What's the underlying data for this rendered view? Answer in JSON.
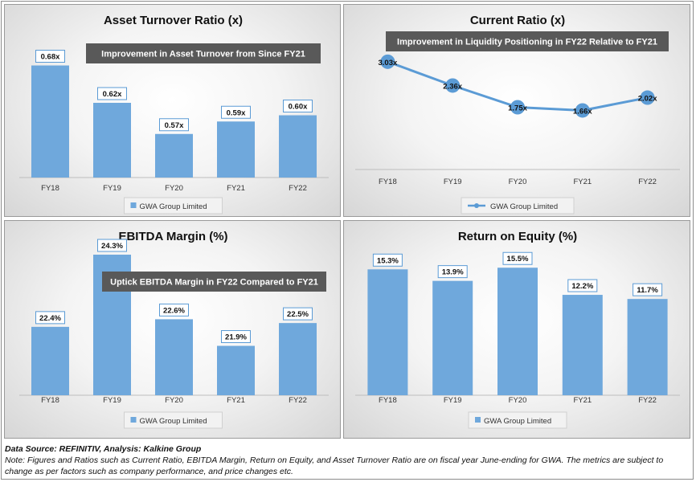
{
  "chart_data": [
    {
      "type": "bar",
      "title": "Asset Turnover Ratio (x)",
      "annotation": "Improvement in Asset Turnover from Since FY21",
      "categories": [
        "FY18",
        "FY19",
        "FY20",
        "FY21",
        "FY22"
      ],
      "series": [
        {
          "name": "GWA Group  Limited",
          "values": [
            0.68,
            0.62,
            0.57,
            0.59,
            0.6
          ]
        }
      ],
      "data_labels": [
        "0.68x",
        "0.62x",
        "0.57x",
        "0.59x",
        "0.60x"
      ],
      "ylim": [
        0.5,
        0.7
      ],
      "legend": "bottom",
      "color": "#6fa8dc"
    },
    {
      "type": "line",
      "title": "Current Ratio (x)",
      "annotation": "Improvement in Liquidity Positioning in FY22 Relative to FY21",
      "categories": [
        "FY18",
        "FY19",
        "FY20",
        "FY21",
        "FY22"
      ],
      "series": [
        {
          "name": "GWA Group  Limited",
          "values": [
            3.03,
            2.36,
            1.75,
            1.66,
            2.02
          ]
        }
      ],
      "data_labels": [
        "3.03x",
        "2.36x",
        "1.75x",
        "1.66x",
        "2.02x"
      ],
      "ylim": [
        0.0,
        3.5
      ],
      "legend": "bottom",
      "color": "#5b9bd5"
    },
    {
      "type": "bar",
      "title": "EBITDA Margin (%)",
      "annotation": "Uptick EBITDA Margin in FY22 Compared to FY21",
      "categories": [
        "FY18",
        "FY19",
        "FY20",
        "FY21",
        "FY22"
      ],
      "series": [
        {
          "name": "GWA Group  Limited",
          "values": [
            22.4,
            24.3,
            22.6,
            21.9,
            22.5
          ]
        }
      ],
      "data_labels": [
        "22.4%",
        "24.3%",
        "22.6%",
        "21.9%",
        "22.5%"
      ],
      "ylim": [
        20.6,
        24.3
      ],
      "legend": "bottom",
      "color": "#6fa8dc"
    },
    {
      "type": "bar",
      "title": "Return on Equity (%)",
      "annotation": "",
      "categories": [
        "FY18",
        "FY19",
        "FY20",
        "FY21",
        "FY22"
      ],
      "series": [
        {
          "name": "GWA Group  Limited",
          "values": [
            15.3,
            13.9,
            15.5,
            12.2,
            11.7
          ]
        }
      ],
      "data_labels": [
        "15.3%",
        "13.9%",
        "15.5%",
        "12.2%",
        "11.7%"
      ],
      "ylim": [
        0,
        16.5
      ],
      "legend": "bottom",
      "color": "#6fa8dc"
    }
  ],
  "footer": {
    "source": "Data Source: REFINITIV, Analysis: Kalkine Group",
    "note": "Note: Figures and Ratios such as Current Ratio, EBITDA Margin, Return on Equity, and Asset Turnover Ratio are on fiscal year June-ending for GWA. The metrics are subject to change as per factors such as company performance, and price changes etc."
  }
}
